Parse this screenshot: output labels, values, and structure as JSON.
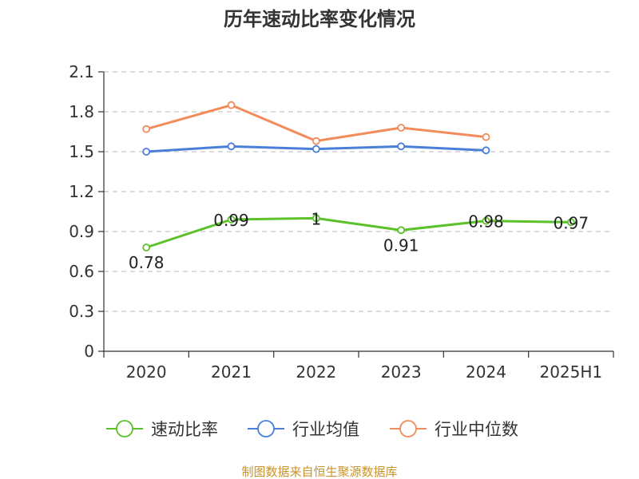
{
  "chart_data": {
    "type": "line",
    "title": "历年速动比率变化情况",
    "xlabel": "",
    "ylabel": "",
    "categories": [
      "2020",
      "2021",
      "2022",
      "2023",
      "2024",
      "2025H1"
    ],
    "ylim": [
      0,
      2.1
    ],
    "yticks": [
      "0",
      "0.3",
      "0.6",
      "0.9",
      "1.2",
      "1.5",
      "1.8",
      "2.1"
    ],
    "grid": true,
    "legend_position": "bottom",
    "series": [
      {
        "name": "速动比率",
        "color": "#5bc22a",
        "values": [
          0.78,
          0.99,
          1,
          0.91,
          0.98,
          0.97
        ],
        "labels": [
          "0.78",
          "0.99",
          "1",
          "0.91",
          "0.98",
          "0.97"
        ],
        "show_labels": true
      },
      {
        "name": "行业均值",
        "color": "#4a7fd9",
        "values": [
          1.5,
          1.54,
          1.52,
          1.54,
          1.51,
          null
        ],
        "show_labels": false
      },
      {
        "name": "行业中位数",
        "color": "#f28c5a",
        "values": [
          1.67,
          1.85,
          1.58,
          1.68,
          1.61,
          null
        ],
        "show_labels": false
      }
    ]
  },
  "source_text": "制图数据来自恒生聚源数据库"
}
